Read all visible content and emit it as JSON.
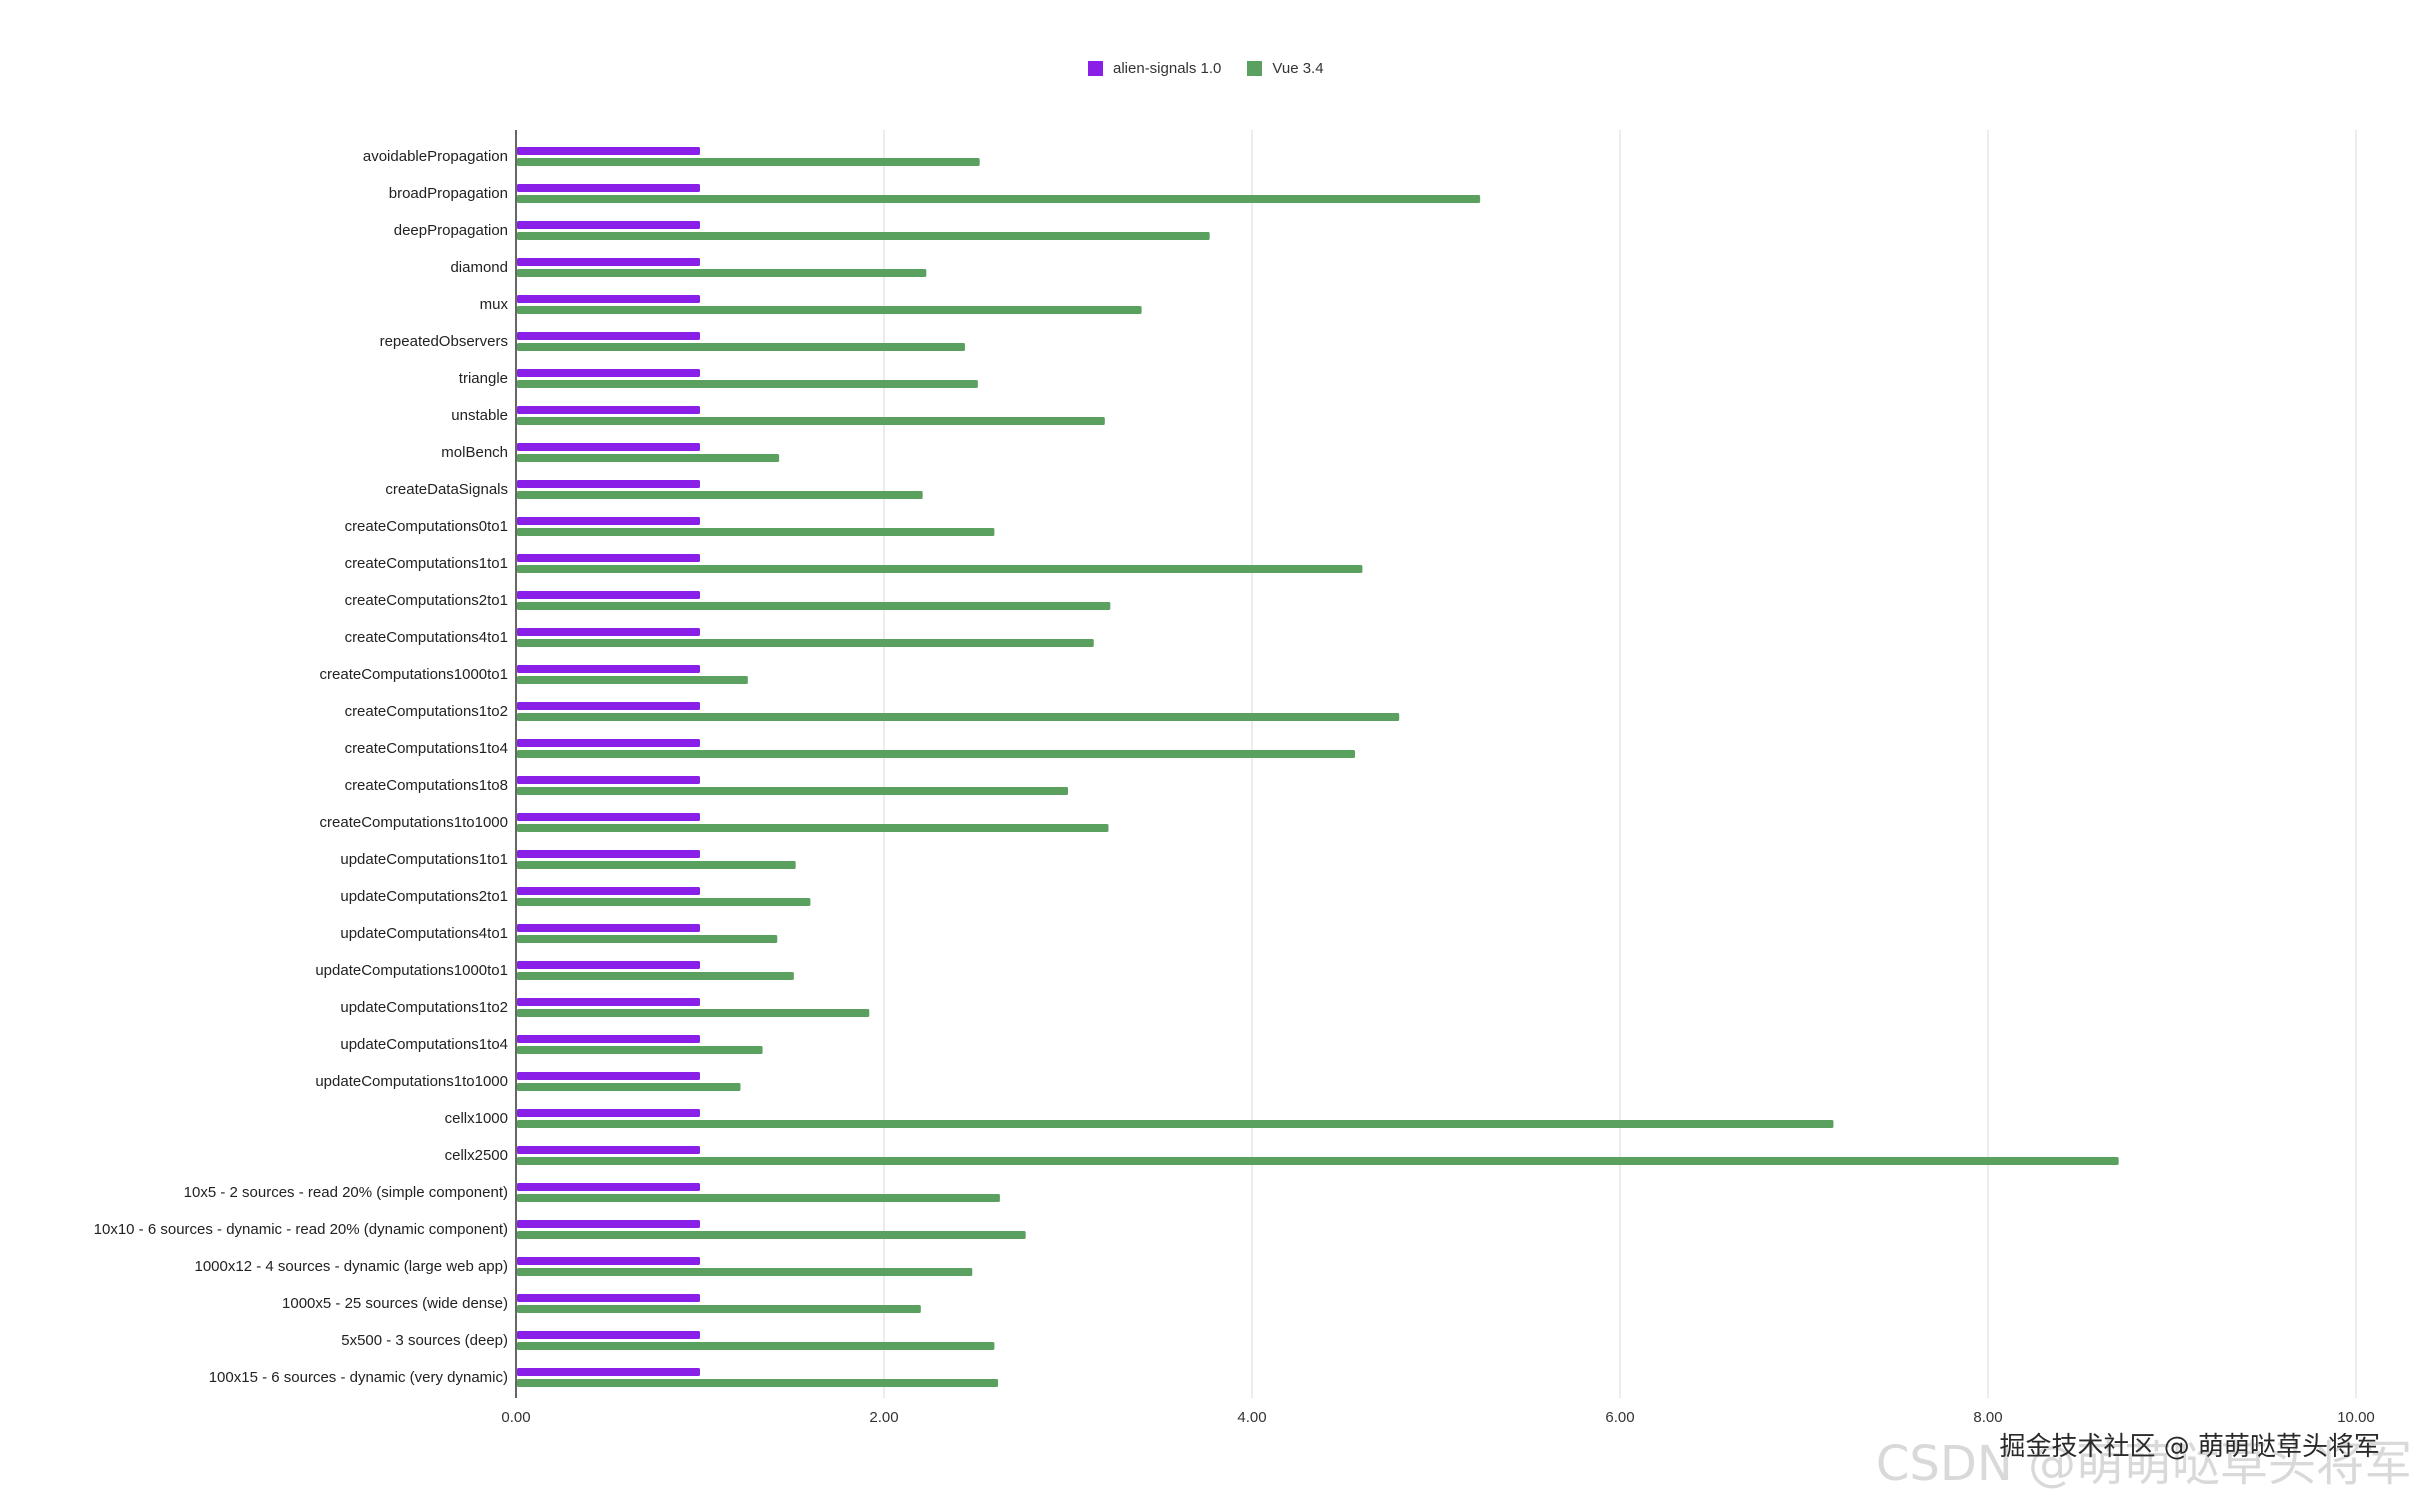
{
  "legend": {
    "items": [
      {
        "name": "alien-signals 1.0",
        "color": "#8a20e8"
      },
      {
        "name": "Vue 3.4",
        "color": "#5aa05f"
      }
    ]
  },
  "watermark": {
    "front": "掘金技术社区 @ 萌萌哒草头将军",
    "back": "CSDN @萌萌哒草头将军"
  },
  "chart_data": {
    "type": "bar",
    "orientation": "horizontal",
    "title": "",
    "xlabel": "",
    "ylabel": "",
    "xlim": [
      0,
      10
    ],
    "x_ticks": [
      "0.00",
      "2.00",
      "4.00",
      "6.00",
      "8.00",
      "10.00"
    ],
    "grid": "vertical",
    "legend_position": "top-center",
    "categories": [
      "avoidablePropagation",
      "broadPropagation",
      "deepPropagation",
      "diamond",
      "mux",
      "repeatedObservers",
      "triangle",
      "unstable",
      "molBench",
      "createDataSignals",
      "createComputations0to1",
      "createComputations1to1",
      "createComputations2to1",
      "createComputations4to1",
      "createComputations1000to1",
      "createComputations1to2",
      "createComputations1to4",
      "createComputations1to8",
      "createComputations1to1000",
      "updateComputations1to1",
      "updateComputations2to1",
      "updateComputations4to1",
      "updateComputations1000to1",
      "updateComputations1to2",
      "updateComputations1to4",
      "updateComputations1to1000",
      "cellx1000",
      "cellx2500",
      "10x5 - 2 sources - read 20% (simple component)",
      "10x10 - 6 sources - dynamic - read 20% (dynamic component)",
      "1000x12 - 4 sources - dynamic (large web app)",
      "1000x5 - 25 sources (wide dense)",
      "5x500 - 3 sources (deep)",
      "100x15 - 6 sources - dynamic (very dynamic)"
    ],
    "series": [
      {
        "name": "alien-signals 1.0",
        "color": "#8a20e8",
        "values": [
          1,
          1,
          1,
          1,
          1,
          1,
          1,
          1,
          1,
          1,
          1,
          1,
          1,
          1,
          1,
          1,
          1,
          1,
          1,
          1,
          1,
          1,
          1,
          1,
          1,
          1,
          1,
          1,
          1,
          1,
          1,
          1,
          1,
          1
        ]
      },
      {
        "name": "Vue 3.4",
        "color": "#5aa05f",
        "values": [
          2.52,
          5.24,
          3.77,
          2.23,
          3.4,
          2.44,
          2.51,
          3.2,
          1.43,
          2.21,
          2.6,
          4.6,
          3.23,
          3.14,
          1.26,
          4.8,
          4.56,
          3.0,
          3.22,
          1.52,
          1.6,
          1.42,
          1.51,
          1.92,
          1.34,
          1.22,
          7.16,
          8.71,
          2.63,
          2.77,
          2.48,
          2.2,
          2.6,
          2.62
        ]
      }
    ]
  }
}
